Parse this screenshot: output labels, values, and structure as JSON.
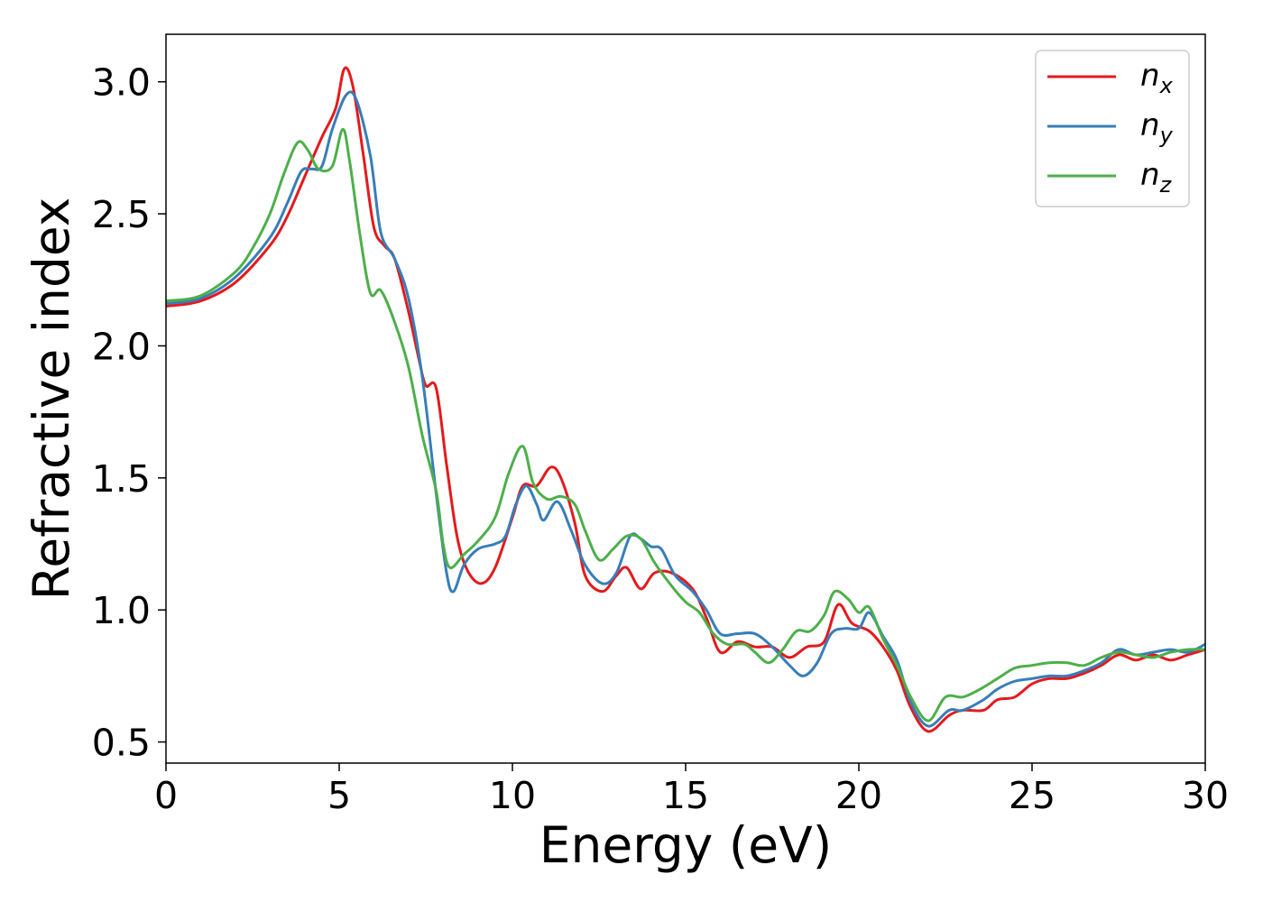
{
  "chart_data": {
    "type": "line",
    "title": "",
    "xlabel": "Energy (eV)",
    "ylabel": "Refractive index",
    "xlim": [
      0,
      30
    ],
    "ylim": [
      0.42,
      3.18
    ],
    "xticks": [
      0,
      5,
      10,
      15,
      20,
      25,
      30
    ],
    "yticks": [
      0.5,
      1.0,
      1.5,
      2.0,
      2.5,
      3.0
    ],
    "xtick_labels": [
      "0",
      "5",
      "10",
      "15",
      "20",
      "25",
      "30"
    ],
    "ytick_labels": [
      "0.5",
      "1.0",
      "1.5",
      "2.0",
      "2.5",
      "3.0"
    ],
    "grid": false,
    "legend_position": "top-right",
    "series": [
      {
        "name": "n_x",
        "label_main": "n",
        "label_sub": "x",
        "color": "#e41a1c",
        "points": [
          [
            0,
            2.15
          ],
          [
            1,
            2.17
          ],
          [
            2,
            2.24
          ],
          [
            3,
            2.38
          ],
          [
            3.5,
            2.49
          ],
          [
            4,
            2.64
          ],
          [
            4.5,
            2.79
          ],
          [
            4.9,
            2.9
          ],
          [
            5.15,
            3.05
          ],
          [
            5.4,
            2.98
          ],
          [
            5.7,
            2.72
          ],
          [
            6.0,
            2.45
          ],
          [
            6.3,
            2.38
          ],
          [
            6.6,
            2.33
          ],
          [
            7.0,
            2.13
          ],
          [
            7.3,
            1.95
          ],
          [
            7.5,
            1.85
          ],
          [
            7.8,
            1.84
          ],
          [
            8.1,
            1.55
          ],
          [
            8.4,
            1.28
          ],
          [
            8.7,
            1.15
          ],
          [
            9.1,
            1.1
          ],
          [
            9.5,
            1.16
          ],
          [
            10.0,
            1.35
          ],
          [
            10.3,
            1.47
          ],
          [
            10.7,
            1.47
          ],
          [
            11.1,
            1.54
          ],
          [
            11.4,
            1.5
          ],
          [
            11.8,
            1.33
          ],
          [
            12.1,
            1.13
          ],
          [
            12.6,
            1.07
          ],
          [
            13.0,
            1.13
          ],
          [
            13.3,
            1.16
          ],
          [
            13.7,
            1.08
          ],
          [
            14.1,
            1.14
          ],
          [
            14.6,
            1.14
          ],
          [
            15.2,
            1.08
          ],
          [
            15.6,
            0.97
          ],
          [
            16.0,
            0.84
          ],
          [
            16.5,
            0.88
          ],
          [
            17.0,
            0.86
          ],
          [
            17.5,
            0.86
          ],
          [
            18.0,
            0.82
          ],
          [
            18.5,
            0.86
          ],
          [
            19.0,
            0.88
          ],
          [
            19.4,
            1.02
          ],
          [
            19.8,
            0.95
          ],
          [
            20.3,
            0.92
          ],
          [
            20.7,
            0.86
          ],
          [
            21.1,
            0.77
          ],
          [
            21.5,
            0.63
          ],
          [
            22.0,
            0.54
          ],
          [
            22.6,
            0.6
          ],
          [
            23.0,
            0.62
          ],
          [
            23.6,
            0.62
          ],
          [
            24.0,
            0.66
          ],
          [
            24.5,
            0.67
          ],
          [
            25.0,
            0.72
          ],
          [
            25.5,
            0.74
          ],
          [
            26.0,
            0.74
          ],
          [
            26.5,
            0.76
          ],
          [
            27.0,
            0.79
          ],
          [
            27.5,
            0.83
          ],
          [
            28.0,
            0.81
          ],
          [
            28.5,
            0.83
          ],
          [
            29.0,
            0.81
          ],
          [
            29.5,
            0.83
          ],
          [
            30,
            0.85
          ]
        ]
      },
      {
        "name": "n_y",
        "label_main": "n",
        "label_sub": "y",
        "color": "#377eb8",
        "points": [
          [
            0,
            2.16
          ],
          [
            1,
            2.18
          ],
          [
            2,
            2.26
          ],
          [
            3,
            2.41
          ],
          [
            3.5,
            2.54
          ],
          [
            3.9,
            2.66
          ],
          [
            4.2,
            2.67
          ],
          [
            4.5,
            2.68
          ],
          [
            4.8,
            2.82
          ],
          [
            5.2,
            2.95
          ],
          [
            5.5,
            2.93
          ],
          [
            5.9,
            2.72
          ],
          [
            6.2,
            2.43
          ],
          [
            6.6,
            2.33
          ],
          [
            7.0,
            2.18
          ],
          [
            7.4,
            1.88
          ],
          [
            7.8,
            1.44
          ],
          [
            8.1,
            1.14
          ],
          [
            8.3,
            1.07
          ],
          [
            8.6,
            1.17
          ],
          [
            9.0,
            1.23
          ],
          [
            9.5,
            1.25
          ],
          [
            9.8,
            1.28
          ],
          [
            10.1,
            1.4
          ],
          [
            10.4,
            1.47
          ],
          [
            10.7,
            1.4
          ],
          [
            10.9,
            1.34
          ],
          [
            11.3,
            1.41
          ],
          [
            11.7,
            1.3
          ],
          [
            12.1,
            1.17
          ],
          [
            12.6,
            1.1
          ],
          [
            13.0,
            1.14
          ],
          [
            13.4,
            1.28
          ],
          [
            13.7,
            1.27
          ],
          [
            14.0,
            1.24
          ],
          [
            14.3,
            1.23
          ],
          [
            14.7,
            1.13
          ],
          [
            15.2,
            1.07
          ],
          [
            15.6,
            1.0
          ],
          [
            16.0,
            0.91
          ],
          [
            16.5,
            0.91
          ],
          [
            17.0,
            0.91
          ],
          [
            17.5,
            0.86
          ],
          [
            18.0,
            0.79
          ],
          [
            18.4,
            0.75
          ],
          [
            18.8,
            0.8
          ],
          [
            19.2,
            0.91
          ],
          [
            19.6,
            0.93
          ],
          [
            20.0,
            0.93
          ],
          [
            20.3,
            0.99
          ],
          [
            20.7,
            0.9
          ],
          [
            21.1,
            0.81
          ],
          [
            21.5,
            0.65
          ],
          [
            22.0,
            0.56
          ],
          [
            22.6,
            0.62
          ],
          [
            23.0,
            0.62
          ],
          [
            23.6,
            0.66
          ],
          [
            24.0,
            0.7
          ],
          [
            24.5,
            0.73
          ],
          [
            25.0,
            0.74
          ],
          [
            25.5,
            0.75
          ],
          [
            26.0,
            0.75
          ],
          [
            26.5,
            0.77
          ],
          [
            27.0,
            0.8
          ],
          [
            27.5,
            0.85
          ],
          [
            28.0,
            0.83
          ],
          [
            28.5,
            0.84
          ],
          [
            29.0,
            0.85
          ],
          [
            29.5,
            0.84
          ],
          [
            30,
            0.87
          ]
        ]
      },
      {
        "name": "n_z",
        "label_main": "n",
        "label_sub": "z",
        "color": "#4daf4a",
        "points": [
          [
            0,
            2.17
          ],
          [
            1,
            2.19
          ],
          [
            2,
            2.28
          ],
          [
            2.5,
            2.37
          ],
          [
            3,
            2.5
          ],
          [
            3.4,
            2.65
          ],
          [
            3.8,
            2.77
          ],
          [
            4.1,
            2.74
          ],
          [
            4.4,
            2.67
          ],
          [
            4.8,
            2.68
          ],
          [
            5.1,
            2.82
          ],
          [
            5.3,
            2.7
          ],
          [
            5.6,
            2.42
          ],
          [
            5.9,
            2.2
          ],
          [
            6.2,
            2.21
          ],
          [
            6.6,
            2.09
          ],
          [
            7.0,
            1.92
          ],
          [
            7.4,
            1.66
          ],
          [
            7.8,
            1.45
          ],
          [
            8.0,
            1.25
          ],
          [
            8.2,
            1.16
          ],
          [
            8.6,
            1.21
          ],
          [
            9.0,
            1.26
          ],
          [
            9.5,
            1.35
          ],
          [
            9.9,
            1.52
          ],
          [
            10.3,
            1.62
          ],
          [
            10.6,
            1.48
          ],
          [
            11.0,
            1.42
          ],
          [
            11.4,
            1.43
          ],
          [
            11.8,
            1.4
          ],
          [
            12.1,
            1.3
          ],
          [
            12.5,
            1.19
          ],
          [
            12.9,
            1.23
          ],
          [
            13.3,
            1.28
          ],
          [
            13.7,
            1.27
          ],
          [
            14.1,
            1.18
          ],
          [
            14.6,
            1.09
          ],
          [
            15.0,
            1.03
          ],
          [
            15.4,
            0.99
          ],
          [
            15.8,
            0.91
          ],
          [
            16.2,
            0.87
          ],
          [
            16.7,
            0.87
          ],
          [
            17.0,
            0.84
          ],
          [
            17.4,
            0.8
          ],
          [
            17.8,
            0.85
          ],
          [
            18.2,
            0.92
          ],
          [
            18.6,
            0.92
          ],
          [
            19.0,
            0.98
          ],
          [
            19.3,
            1.07
          ],
          [
            19.7,
            1.04
          ],
          [
            20.0,
            0.99
          ],
          [
            20.3,
            1.01
          ],
          [
            20.7,
            0.89
          ],
          [
            21.1,
            0.79
          ],
          [
            21.5,
            0.67
          ],
          [
            22.0,
            0.58
          ],
          [
            22.5,
            0.67
          ],
          [
            23.0,
            0.67
          ],
          [
            23.5,
            0.7
          ],
          [
            24.0,
            0.74
          ],
          [
            24.5,
            0.78
          ],
          [
            25.0,
            0.79
          ],
          [
            25.5,
            0.8
          ],
          [
            26.0,
            0.8
          ],
          [
            26.5,
            0.79
          ],
          [
            27.0,
            0.82
          ],
          [
            27.5,
            0.84
          ],
          [
            28.0,
            0.83
          ],
          [
            28.5,
            0.82
          ],
          [
            29.0,
            0.84
          ],
          [
            29.5,
            0.85
          ],
          [
            30,
            0.85
          ]
        ]
      }
    ]
  }
}
